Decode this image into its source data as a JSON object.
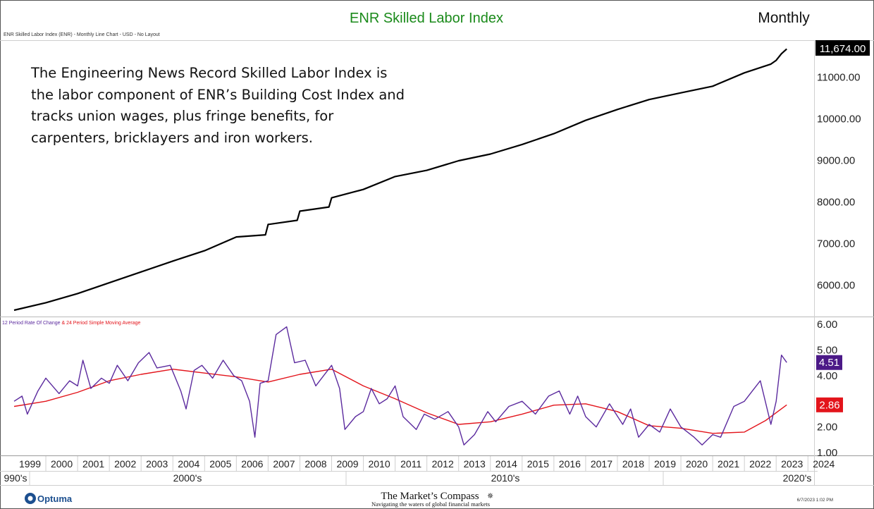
{
  "header": {
    "title": "ENR Skilled Labor Index",
    "period": "Monthly",
    "chart_info": "ENR Skilled Labor Index (ENR) - Monthly Line Chart - USD - No Layout"
  },
  "description": {
    "lines": [
      "The Engineering News Record Skilled Labor Index is",
      "the labor component of ENR’s Building Cost Index and",
      "tracks union wages, plus fringe benefits, for",
      "carpenters, bricklayers and iron workers."
    ]
  },
  "footer": {
    "optuma_logo": "Optuma",
    "brand_name": "The Market’s Compass",
    "brand_tagline": "Navigating the waters of global financial markets",
    "timestamp": "6/7/2023 1:02 PM"
  },
  "colors": {
    "title_green": "#1a8a1a",
    "price_line": "#000000",
    "roc_line": "#5b2a9e",
    "sma_line": "#e3141b",
    "label_last_price_bg": "#000000",
    "label_roc_bg": "#4b1987",
    "label_sma_bg": "#e3141b"
  },
  "chart_data": [
    {
      "type": "line",
      "title": "ENR Skilled Labor Index",
      "x_start": "1999-01",
      "x_end": "2023-05",
      "ylim": [
        5350,
        11800
      ],
      "y_ticks": [
        "6000.00",
        "7000.00",
        "8000.00",
        "9000.00",
        "10000.00",
        "11000.00"
      ],
      "last_value_label": "11,674.00",
      "series": [
        {
          "points": [
            [
              "1999-01",
              5400
            ],
            [
              "2000-01",
              5580
            ],
            [
              "2001-01",
              5800
            ],
            [
              "2002-01",
              6060
            ],
            [
              "2003-01",
              6320
            ],
            [
              "2004-01",
              6580
            ],
            [
              "2005-01",
              6830
            ],
            [
              "2006-01",
              7160
            ],
            [
              "2006-12",
              7210
            ],
            [
              "2007-01",
              7460
            ],
            [
              "2007-12",
              7560
            ],
            [
              "2008-01",
              7780
            ],
            [
              "2008-12",
              7880
            ],
            [
              "2009-01",
              8100
            ],
            [
              "2010-01",
              8300
            ],
            [
              "2011-01",
              8610
            ],
            [
              "2012-01",
              8760
            ],
            [
              "2013-01",
              8990
            ],
            [
              "2014-01",
              9150
            ],
            [
              "2015-01",
              9380
            ],
            [
              "2016-01",
              9640
            ],
            [
              "2017-01",
              9960
            ],
            [
              "2018-01",
              10220
            ],
            [
              "2019-01",
              10460
            ],
            [
              "2020-01",
              10620
            ],
            [
              "2021-01",
              10780
            ],
            [
              "2022-01",
              11100
            ],
            [
              "2022-11",
              11310
            ],
            [
              "2023-01",
              11400
            ],
            [
              "2023-03",
              11560
            ],
            [
              "2023-05",
              11674
            ]
          ]
        }
      ]
    },
    {
      "type": "line",
      "x_start": "1999-01",
      "x_end": "2023-05",
      "ylim": [
        1.0,
        6.0
      ],
      "y_ticks": [
        "1.00",
        "2.00",
        "3.00",
        "4.00",
        "5.00",
        "6.00"
      ],
      "legend": {
        "roc_label": "12 Period Rate Of Change",
        "separator": " & ",
        "sma_label": "24 Period Simple Moving Average"
      },
      "series": [
        {
          "name": "12 Period Rate Of Change",
          "last_value_label": "4.51",
          "points": [
            [
              "1999-01",
              3.0
            ],
            [
              "1999-04",
              3.2
            ],
            [
              "1999-06",
              2.5
            ],
            [
              "1999-10",
              3.4
            ],
            [
              "2000-01",
              3.9
            ],
            [
              "2000-06",
              3.3
            ],
            [
              "2000-10",
              3.8
            ],
            [
              "2001-01",
              3.6
            ],
            [
              "2001-03",
              4.6
            ],
            [
              "2001-06",
              3.5
            ],
            [
              "2001-10",
              3.9
            ],
            [
              "2002-01",
              3.7
            ],
            [
              "2002-04",
              4.4
            ],
            [
              "2002-08",
              3.8
            ],
            [
              "2002-12",
              4.5
            ],
            [
              "2003-04",
              4.9
            ],
            [
              "2003-07",
              4.3
            ],
            [
              "2003-12",
              4.4
            ],
            [
              "2004-04",
              3.4
            ],
            [
              "2004-06",
              2.7
            ],
            [
              "2004-09",
              4.2
            ],
            [
              "2004-12",
              4.4
            ],
            [
              "2005-04",
              3.9
            ],
            [
              "2005-08",
              4.6
            ],
            [
              "2005-12",
              4.0
            ],
            [
              "2006-03",
              3.8
            ],
            [
              "2006-06",
              3.0
            ],
            [
              "2006-08",
              1.6
            ],
            [
              "2006-10",
              3.7
            ],
            [
              "2007-01",
              3.8
            ],
            [
              "2007-04",
              5.6
            ],
            [
              "2007-08",
              5.9
            ],
            [
              "2007-11",
              4.5
            ],
            [
              "2008-03",
              4.6
            ],
            [
              "2008-07",
              3.6
            ],
            [
              "2008-10",
              4.0
            ],
            [
              "2009-01",
              4.4
            ],
            [
              "2009-04",
              3.5
            ],
            [
              "2009-06",
              1.9
            ],
            [
              "2009-10",
              2.4
            ],
            [
              "2010-01",
              2.6
            ],
            [
              "2010-04",
              3.5
            ],
            [
              "2010-07",
              2.9
            ],
            [
              "2010-10",
              3.1
            ],
            [
              "2011-01",
              3.6
            ],
            [
              "2011-04",
              2.4
            ],
            [
              "2011-09",
              1.9
            ],
            [
              "2011-12",
              2.5
            ],
            [
              "2012-04",
              2.3
            ],
            [
              "2012-09",
              2.6
            ],
            [
              "2013-01",
              2.0
            ],
            [
              "2013-03",
              1.3
            ],
            [
              "2013-07",
              1.7
            ],
            [
              "2013-12",
              2.6
            ],
            [
              "2014-03",
              2.2
            ],
            [
              "2014-08",
              2.8
            ],
            [
              "2015-01",
              3.0
            ],
            [
              "2015-06",
              2.5
            ],
            [
              "2015-11",
              3.2
            ],
            [
              "2016-03",
              3.4
            ],
            [
              "2016-07",
              2.5
            ],
            [
              "2016-10",
              3.2
            ],
            [
              "2017-01",
              2.4
            ],
            [
              "2017-05",
              2.0
            ],
            [
              "2017-10",
              2.9
            ],
            [
              "2018-03",
              2.1
            ],
            [
              "2018-06",
              2.7
            ],
            [
              "2018-09",
              1.6
            ],
            [
              "2019-01",
              2.1
            ],
            [
              "2019-05",
              1.8
            ],
            [
              "2019-09",
              2.7
            ],
            [
              "2020-01",
              2.0
            ],
            [
              "2020-06",
              1.6
            ],
            [
              "2020-09",
              1.3
            ],
            [
              "2021-01",
              1.7
            ],
            [
              "2021-04",
              1.6
            ],
            [
              "2021-09",
              2.8
            ],
            [
              "2022-01",
              3.0
            ],
            [
              "2022-04",
              3.4
            ],
            [
              "2022-07",
              3.8
            ],
            [
              "2022-11",
              2.1
            ],
            [
              "2023-01",
              3.0
            ],
            [
              "2023-03",
              4.8
            ],
            [
              "2023-05",
              4.51
            ]
          ]
        },
        {
          "name": "24 Period Simple Moving Average",
          "last_value_label": "2.86",
          "points": [
            [
              "1999-01",
              2.8
            ],
            [
              "2000-01",
              3.0
            ],
            [
              "2001-01",
              3.35
            ],
            [
              "2002-01",
              3.8
            ],
            [
              "2003-01",
              4.05
            ],
            [
              "2004-01",
              4.25
            ],
            [
              "2005-01",
              4.1
            ],
            [
              "2006-01",
              3.95
            ],
            [
              "2007-01",
              3.75
            ],
            [
              "2008-01",
              4.05
            ],
            [
              "2009-01",
              4.25
            ],
            [
              "2010-01",
              3.6
            ],
            [
              "2011-01",
              3.1
            ],
            [
              "2012-01",
              2.55
            ],
            [
              "2013-01",
              2.1
            ],
            [
              "2014-01",
              2.2
            ],
            [
              "2015-01",
              2.5
            ],
            [
              "2016-01",
              2.85
            ],
            [
              "2017-01",
              2.9
            ],
            [
              "2018-01",
              2.6
            ],
            [
              "2019-01",
              2.05
            ],
            [
              "2020-01",
              1.95
            ],
            [
              "2021-01",
              1.75
            ],
            [
              "2022-01",
              1.8
            ],
            [
              "2022-09",
              2.25
            ],
            [
              "2023-05",
              2.86
            ]
          ]
        }
      ]
    }
  ],
  "x_axis": {
    "years": [
      "1999",
      "2000",
      "2001",
      "2002",
      "2003",
      "2004",
      "2005",
      "2006",
      "2007",
      "2008",
      "2009",
      "2010",
      "2011",
      "2012",
      "2013",
      "2014",
      "2015",
      "2016",
      "2017",
      "2018",
      "2019",
      "2020",
      "2021",
      "2022",
      "2023",
      "2024"
    ],
    "decades": [
      "990's",
      "2000's",
      "2010's",
      "2020's"
    ]
  }
}
